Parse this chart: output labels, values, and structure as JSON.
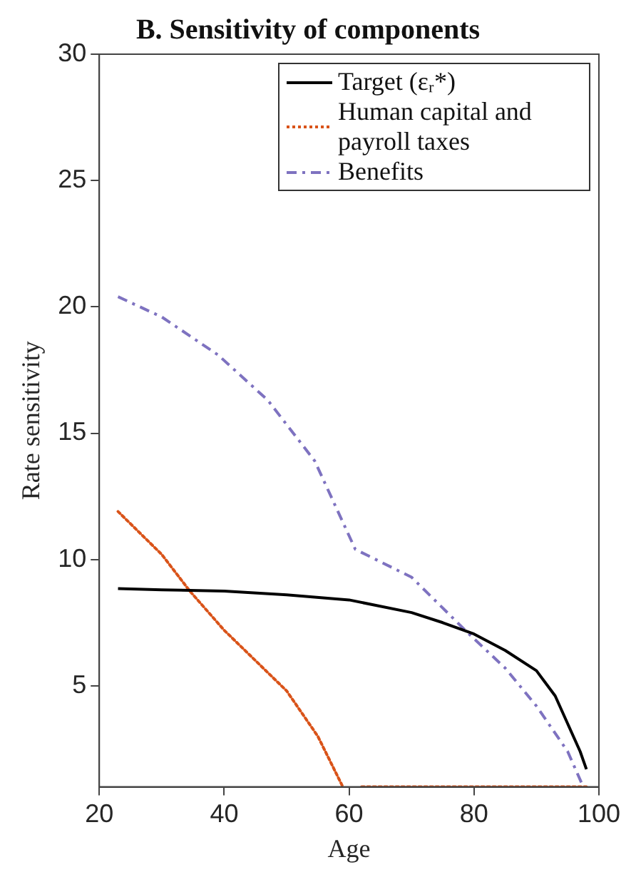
{
  "chart_data": {
    "type": "line",
    "title": "B. Sensitivity of components",
    "xlabel": "Age",
    "ylabel": "Rate sensitivity",
    "xlim": [
      20,
      100
    ],
    "xticks": [
      20,
      40,
      60,
      80,
      100
    ],
    "ylim": [
      1,
      30
    ],
    "yticks": [
      5,
      10,
      15,
      20,
      25,
      30
    ],
    "grid": false,
    "legend": "top right",
    "marker": "none",
    "series": [
      {
        "name": "Target (εᵣ*)",
        "color": "#000000",
        "line_style": "solid",
        "x": [
          23,
          30,
          40,
          50,
          60,
          70,
          75,
          80,
          85,
          90,
          93,
          95,
          97,
          98
        ],
        "values": [
          8.85,
          8.8,
          8.75,
          8.6,
          8.4,
          7.9,
          7.5,
          7.05,
          6.4,
          5.6,
          4.6,
          3.5,
          2.4,
          1.7
        ]
      },
      {
        "name": "Human capital and payroll taxes",
        "color": "#d95319",
        "line_style": "dotted",
        "x": [
          23,
          30,
          34.5,
          40,
          50,
          55,
          59,
          60.5,
          62,
          98
        ],
        "values": [
          11.9,
          10.2,
          8.75,
          7.2,
          4.8,
          3,
          1,
          null,
          1,
          1
        ]
      },
      {
        "name": "Benefits",
        "color": "#7e72c0",
        "line_style": "dashed",
        "x": [
          23,
          30,
          39,
          47,
          54.5,
          61,
          70,
          79,
          85,
          90,
          95,
          97.5
        ],
        "values": [
          20.4,
          19.6,
          18.1,
          16.3,
          13.9,
          10.4,
          9.3,
          7.1,
          5.7,
          4.2,
          2.4,
          1
        ]
      }
    ]
  }
}
